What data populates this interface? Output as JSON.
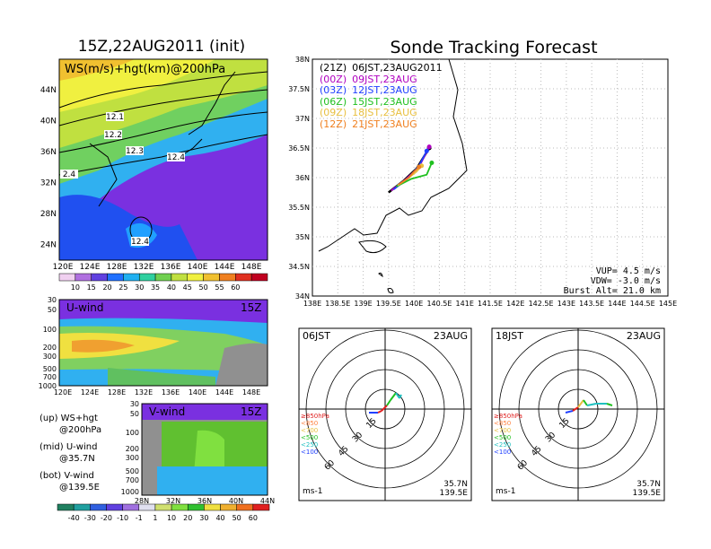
{
  "left": {
    "title": "15Z,22AUG2011 (init)",
    "map": {
      "label": "WS(m/s)+hgt(km)@200hPa",
      "lat_ticks": [
        "44N",
        "40N",
        "36N",
        "32N",
        "28N",
        "24N"
      ],
      "lon_ticks": [
        "120E",
        "124E",
        "128E",
        "132E",
        "136E",
        "140E",
        "144E",
        "148E"
      ],
      "contour_labels": [
        "12.1",
        "12.2",
        "12.3",
        "12.4",
        "2.4",
        "12.4"
      ],
      "colorbar": [
        "10",
        "15",
        "20",
        "25",
        "30",
        "35",
        "40",
        "45",
        "50",
        "55",
        "60"
      ]
    },
    "u_panel": {
      "label": "U-wind",
      "time": "15Z",
      "y_ticks": [
        "30",
        "50",
        "100",
        "200",
        "300",
        "500",
        "700",
        "1000"
      ],
      "x_ticks": [
        "120E",
        "124E",
        "128E",
        "132E",
        "136E",
        "140E",
        "144E",
        "148E"
      ]
    },
    "v_panel": {
      "label": "V-wind",
      "time": "15Z",
      "y_ticks": [
        "30",
        "50",
        "100",
        "200",
        "300",
        "500",
        "700",
        "1000"
      ],
      "x_ticks": [
        "28N",
        "32N",
        "36N",
        "40N",
        "44N"
      ]
    },
    "notes": [
      {
        "a": "(up) WS+hgt",
        "b": "@200hPa"
      },
      {
        "a": "(mid) U-wind",
        "b": "@35.7N"
      },
      {
        "a": "(bot) V-wind",
        "b": "@139.5E"
      }
    ],
    "colorbar2": [
      "-40",
      "-30",
      "-20",
      "-10",
      "-1",
      "1",
      "10",
      "20",
      "30",
      "40",
      "50",
      "60"
    ]
  },
  "right": {
    "title": "Sonde Tracking Forecast",
    "lat_ticks": [
      "38N",
      "37.5N",
      "37N",
      "36.5N",
      "36N",
      "35.5N",
      "35N",
      "34.5N",
      "34N"
    ],
    "lon_ticks": [
      "138E",
      "138.5E",
      "139E",
      "139.5E",
      "140E",
      "140.5E",
      "141E",
      "141.5E",
      "142E",
      "142.5E",
      "143E",
      "143.5E",
      "144E",
      "144.5E",
      "145E"
    ],
    "legend": [
      {
        "code": "(21Z)",
        "time": "06JST,23AUG2011",
        "color": "#000000"
      },
      {
        "code": "(00Z)",
        "time": "09JST,23AUG",
        "color": "#b000c0"
      },
      {
        "code": "(03Z)",
        "time": "12JST,23AUG",
        "color": "#2040ff"
      },
      {
        "code": "(06Z)",
        "time": "15JST,23AUG",
        "color": "#20c020"
      },
      {
        "code": "(09Z)",
        "time": "18JST,23AUG",
        "color": "#e8c040"
      },
      {
        "code": "(12Z)",
        "time": "21JST,23AUG",
        "color": "#f08020"
      }
    ],
    "params": {
      "vup": "VUP= 4.5 m/s",
      "vdw": "VDW= -3.0 m/s",
      "burst": "Burst Alt= 21.0 km"
    }
  },
  "hodographs": [
    {
      "time": "06JST",
      "date": "23AUG",
      "unit": "ms-1",
      "lat": "35.7N",
      "lon": "139.5E",
      "ring_labels": [
        "15",
        "30",
        "45",
        "60"
      ],
      "levels": [
        {
          "label": "≥850hPa",
          "color": "#e02020"
        },
        {
          "label": "<850",
          "color": "#ff8040"
        },
        {
          "label": "<700",
          "color": "#e8c040"
        },
        {
          "label": "<500",
          "color": "#20c020"
        },
        {
          "label": "<250",
          "color": "#20c0c0"
        },
        {
          "label": "<100",
          "color": "#2040ff"
        }
      ]
    },
    {
      "time": "18JST",
      "date": "23AUG",
      "unit": "ms-1",
      "lat": "35.7N",
      "lon": "139.5E",
      "ring_labels": [
        "15",
        "30",
        "45",
        "60"
      ],
      "levels": [
        {
          "label": "≥850hPa",
          "color": "#e02020"
        },
        {
          "label": "<850",
          "color": "#ff8040"
        },
        {
          "label": "<700",
          "color": "#e8c040"
        },
        {
          "label": "<500",
          "color": "#20c020"
        },
        {
          "label": "<250",
          "color": "#20c0c0"
        },
        {
          "label": "<100",
          "color": "#2040ff"
        }
      ]
    }
  ],
  "chart_data": {
    "type": "line",
    "title": "Sonde Tracking Forecast",
    "xlim": [
      138,
      145
    ],
    "ylim": [
      34,
      38
    ],
    "series": [
      {
        "name": "06JST,23AUG2011",
        "x": [
          139.5,
          139.8,
          140.05,
          140.3
        ],
        "y": [
          35.75,
          35.95,
          36.15,
          36.5
        ]
      },
      {
        "name": "09JST,23AUG",
        "x": [
          139.55,
          139.85,
          140.1,
          140.3
        ],
        "y": [
          35.78,
          35.98,
          36.18,
          36.52
        ]
      },
      {
        "name": "12JST,23AUG",
        "x": [
          139.6,
          139.9,
          140.1,
          140.25
        ],
        "y": [
          35.8,
          36.0,
          36.2,
          36.45
        ]
      },
      {
        "name": "15JST,23AUG",
        "x": [
          139.65,
          139.95,
          140.25,
          140.35
        ],
        "y": [
          35.85,
          35.98,
          36.05,
          36.25
        ]
      },
      {
        "name": "18JST,23AUG",
        "x": [
          139.68,
          139.9,
          140.05,
          140.15
        ],
        "y": [
          35.87,
          36.0,
          36.1,
          36.2
        ]
      },
      {
        "name": "21JST,23AUG",
        "x": [
          139.7,
          139.9,
          140.0,
          140.1
        ],
        "y": [
          35.88,
          36.0,
          36.1,
          36.18
        ]
      }
    ]
  }
}
